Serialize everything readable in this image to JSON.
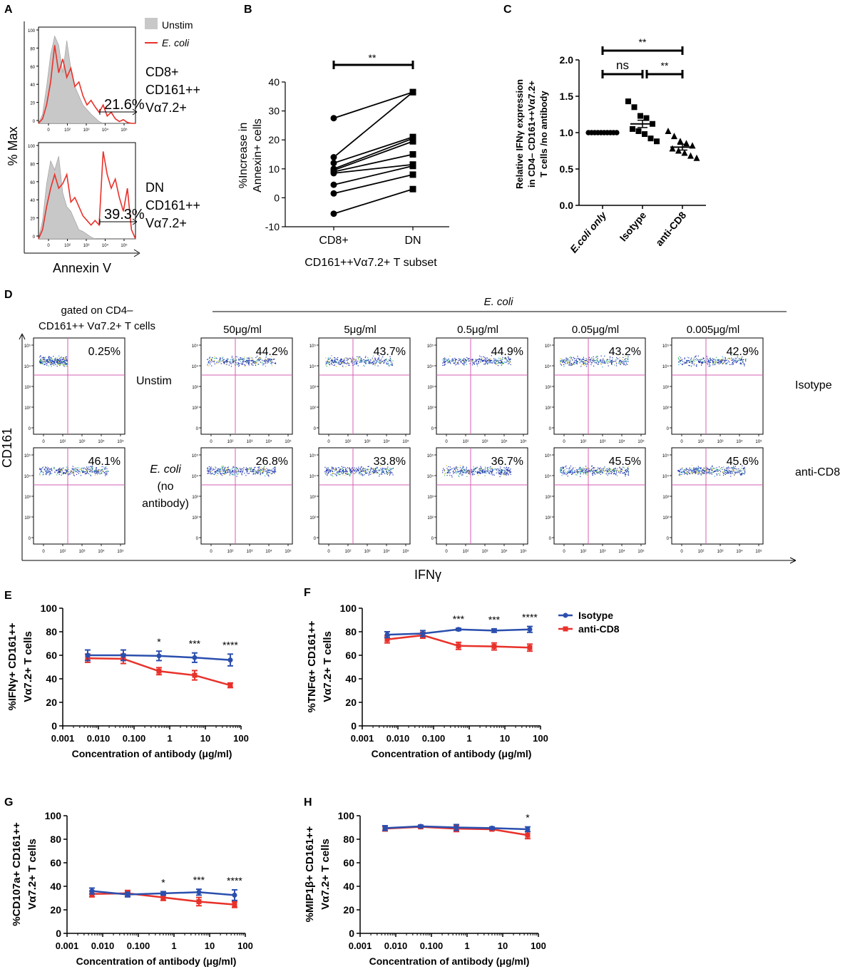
{
  "figure": {
    "panel_letters": [
      "A",
      "B",
      "C",
      "D",
      "E",
      "F",
      "G",
      "H"
    ],
    "legend_line": {
      "isotype": "Isotype",
      "anti_cd8": "anti-CD8"
    },
    "colors": {
      "isotype": "#2b4fae",
      "anti_cd8": "#e8312a",
      "unstim_fill": "#c8c8c8",
      "gate": "#d45fb0",
      "histo_red": "#e8312a"
    }
  },
  "panel_a": {
    "legend_unstim": "Unstim",
    "legend_ecoli": "E. coli",
    "ylabel": "% Max",
    "xlabel": "Annexin V",
    "top": {
      "label_lines": [
        "CD8+",
        "CD161++",
        "Vα7.2+"
      ],
      "pct": "21.6%"
    },
    "bottom": {
      "label_lines": [
        "DN",
        "CD161++",
        "Vα7.2+"
      ],
      "pct": "39.3%"
    },
    "yticks": [
      "100",
      "80",
      "60",
      "40",
      "20",
      "0"
    ],
    "xticks": [
      "0",
      "10²",
      "10³",
      "10⁴",
      "10⁵"
    ]
  },
  "panel_d": {
    "gate_title_lines": [
      "gated on CD4–",
      "CD161++ Vα7.2+ T cells"
    ],
    "ecoli_header": "E. coli",
    "concentrations": [
      "50μg/ml",
      "5μg/ml",
      "0.5μg/ml",
      "0.05μg/ml",
      "0.005μg/ml"
    ],
    "unstim_label": "Unstim",
    "unstim_pct": "0.25%",
    "ecoli_label_lines": [
      "E. coli",
      "(no",
      "antibody)"
    ],
    "ecoli_pct": "46.1%",
    "isotype_row_label": "Isotype",
    "anticd8_row_label": "anti-CD8",
    "isotype_pcts": [
      "44.2%",
      "43.7%",
      "44.9%",
      "43.2%",
      "42.9%"
    ],
    "anticd8_pcts": [
      "26.8%",
      "33.8%",
      "36.7%",
      "45.5%",
      "45.6%"
    ],
    "ylabel": "CD161",
    "xlabel": "IFNγ",
    "axis_ticks": [
      "0",
      "10²",
      "10³",
      "10⁴",
      "10⁵"
    ],
    "y_axis_ticks": [
      "10⁵",
      "10⁴",
      "10³",
      "10²",
      "0"
    ]
  },
  "chart_data": [
    {
      "panel": "B",
      "type": "line",
      "title": "",
      "ylabel_lines": [
        "%Increase in",
        "Annexin+ cells"
      ],
      "xlabel": "CD161++Vα7.2+ T subset",
      "categories": [
        "CD8+",
        "DN"
      ],
      "ylim": [
        -10,
        40
      ],
      "yticks": [
        -10,
        0,
        10,
        20,
        30,
        40
      ],
      "pairs": [
        [
          27.5,
          36.5
        ],
        [
          14,
          36.5
        ],
        [
          12,
          21
        ],
        [
          10,
          20.5
        ],
        [
          9.5,
          19.5
        ],
        [
          9,
          15
        ],
        [
          8.5,
          11.5
        ],
        [
          4.5,
          11
        ],
        [
          1.5,
          8
        ],
        [
          -5.5,
          3
        ]
      ],
      "significance": "**"
    },
    {
      "panel": "C",
      "type": "scatter",
      "ylabel_lines": [
        "Relative IFNγ expression",
        "in CD4– CD161++Vα7.2+",
        "T cells /no antibody"
      ],
      "categories": [
        "E.coli only",
        "Isotype",
        "anti-CD8"
      ],
      "ylim": [
        0,
        2.0
      ],
      "yticks": [
        "0.0",
        "0.5",
        "1.0",
        "1.5",
        "2.0"
      ],
      "points": [
        [
          1.0,
          1.0,
          1.0,
          1.0,
          1.0,
          1.0,
          1.0,
          1.0,
          1.0,
          1.0
        ],
        [
          1.43,
          1.35,
          1.23,
          1.2,
          1.12,
          1.05,
          1.02,
          0.98,
          0.92,
          0.88
        ],
        [
          1.02,
          0.95,
          0.88,
          0.85,
          0.82,
          0.78,
          0.75,
          0.72,
          0.68,
          0.65
        ]
      ],
      "means": [
        1.0,
        1.12,
        0.8
      ],
      "sems": [
        0.0,
        0.05,
        0.04
      ],
      "significance": [
        {
          "between": [
            1,
            2
          ],
          "label": "ns"
        },
        {
          "between": [
            2,
            3
          ],
          "label": "**"
        },
        {
          "between": [
            1,
            3
          ],
          "label": "**"
        }
      ]
    },
    {
      "panel": "E",
      "type": "line",
      "ylabel_lines": [
        "%IFNγ+ CD161++",
        "Vα7.2+ T cells"
      ],
      "xlabel": "Concentration of antibody (μg/ml)",
      "x": [
        0.005,
        0.05,
        0.5,
        5,
        50
      ],
      "xticks": [
        "0.001",
        "0.010",
        "0.100",
        "1",
        "10",
        "100"
      ],
      "ylim": [
        0,
        100
      ],
      "yticks": [
        0,
        20,
        40,
        60,
        80,
        100
      ],
      "series": [
        {
          "name": "Isotype",
          "values": [
            60,
            60,
            59.5,
            58,
            56
          ],
          "err": [
            4.5,
            4.5,
            4,
            4,
            5
          ]
        },
        {
          "name": "anti-CD8",
          "values": [
            57.5,
            57,
            46.5,
            43,
            34.5
          ],
          "err": [
            3.5,
            4,
            3,
            4,
            2
          ]
        }
      ],
      "stars": [
        "",
        "",
        "*",
        "***",
        "****"
      ]
    },
    {
      "panel": "F",
      "type": "line",
      "ylabel_lines": [
        "%TNFα+ CD161++",
        "Vα7.2+ T cells"
      ],
      "xlabel": "Concentration of antibody (μg/ml)",
      "x": [
        0.005,
        0.05,
        0.5,
        5,
        50
      ],
      "xticks": [
        "0.001",
        "0.010",
        "0.100",
        "1",
        "10",
        "100"
      ],
      "ylim": [
        0,
        100
      ],
      "yticks": [
        0,
        20,
        40,
        60,
        80,
        100
      ],
      "series": [
        {
          "name": "Isotype",
          "values": [
            77.5,
            78.5,
            82,
            81,
            82
          ],
          "err": [
            2.5,
            2.5,
            1,
            1.5,
            2.5
          ]
        },
        {
          "name": "anti-CD8",
          "values": [
            73.5,
            77,
            68,
            67.5,
            66.5
          ],
          "err": [
            3,
            2.5,
            3,
            3,
            3
          ]
        }
      ],
      "stars": [
        "",
        "",
        "***",
        "***",
        "****"
      ]
    },
    {
      "panel": "G",
      "type": "line",
      "ylabel_lines": [
        "%CD107a+ CD161++",
        "Vα7.2+ T cells"
      ],
      "xlabel": "Concentration of antibody (μg/ml)",
      "x": [
        0.005,
        0.05,
        0.5,
        5,
        50
      ],
      "xticks": [
        "0.001",
        "0.010",
        "0.100",
        "1",
        "10",
        "100"
      ],
      "ylim": [
        0,
        100
      ],
      "yticks": [
        0,
        20,
        40,
        60,
        80,
        100
      ],
      "series": [
        {
          "name": "Isotype",
          "values": [
            36,
            33,
            34,
            35,
            32.5
          ],
          "err": [
            2.5,
            2,
            1.5,
            2.5,
            4.5
          ]
        },
        {
          "name": "anti-CD8",
          "values": [
            33.5,
            34,
            30.5,
            27,
            24.5
          ],
          "err": [
            2.5,
            2.5,
            2.5,
            3.5,
            2.5
          ]
        }
      ],
      "stars": [
        "",
        "",
        "*",
        "***",
        "****"
      ]
    },
    {
      "panel": "H",
      "type": "line",
      "ylabel_lines": [
        "%MIP1β+ CD161++",
        "Vα7.2+ T cells"
      ],
      "xlabel": "Concentration of antibody (μg/ml)",
      "x": [
        0.005,
        0.05,
        0.5,
        5,
        50
      ],
      "xticks": [
        "0.001",
        "0.010",
        "0.100",
        "1",
        "10",
        "100"
      ],
      "ylim": [
        0,
        100
      ],
      "yticks": [
        0,
        20,
        40,
        60,
        80,
        100
      ],
      "series": [
        {
          "name": "Isotype",
          "values": [
            89.5,
            91,
            90,
            89.5,
            88.5
          ],
          "err": [
            2,
            1,
            2.5,
            1,
            2
          ]
        },
        {
          "name": "anti-CD8",
          "values": [
            89,
            90.5,
            89,
            88.5,
            83.5
          ],
          "err": [
            2,
            1,
            2.5,
            1,
            3
          ]
        }
      ],
      "stars": [
        "",
        "",
        "",
        "",
        "*"
      ]
    }
  ]
}
